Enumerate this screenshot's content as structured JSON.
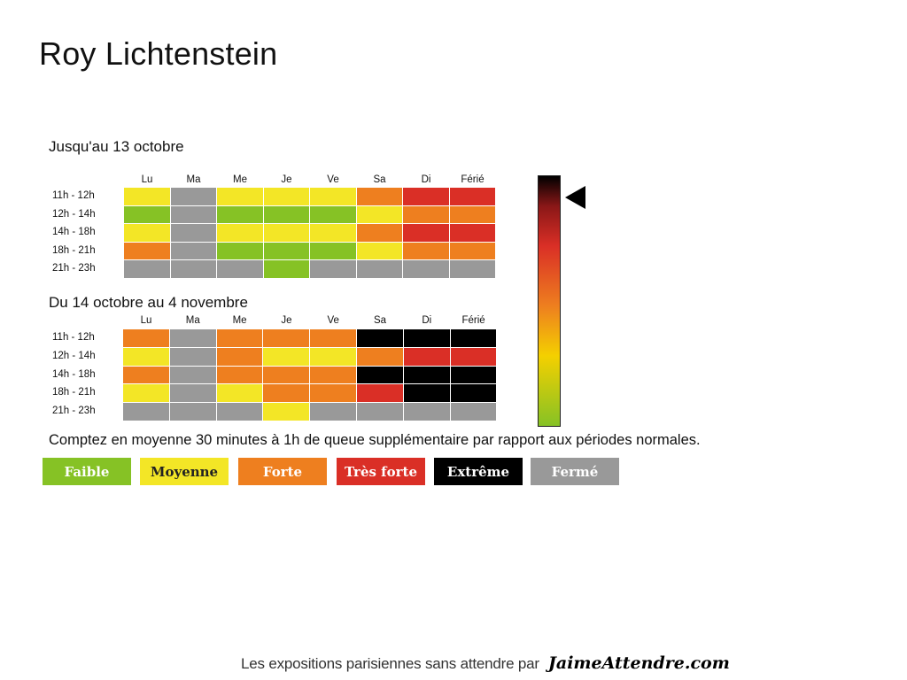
{
  "title": "Roy Lichtenstein",
  "chart_data": {
    "type": "heatmap",
    "days": [
      "Lu",
      "Ma",
      "Me",
      "Je",
      "Ve",
      "Sa",
      "Di",
      "Férié"
    ],
    "hours": [
      "11h - 12h",
      "12h - 14h",
      "14h - 18h",
      "18h - 21h",
      "21h - 23h"
    ],
    "levels": {
      "faible": "#86c225",
      "moyenne": "#f3e626",
      "forte": "#ee7f1f",
      "tres_forte": "#da2f26",
      "extreme": "#000000",
      "ferme": "#999999"
    },
    "periods": [
      {
        "title": "Jusqu'au 13 octobre",
        "grid": [
          [
            "moyenne",
            "ferme",
            "moyenne",
            "moyenne",
            "moyenne",
            "forte",
            "tres_forte",
            "tres_forte"
          ],
          [
            "faible",
            "ferme",
            "faible",
            "faible",
            "faible",
            "moyenne",
            "forte",
            "forte"
          ],
          [
            "moyenne",
            "ferme",
            "moyenne",
            "moyenne",
            "moyenne",
            "forte",
            "tres_forte",
            "tres_forte"
          ],
          [
            "forte",
            "ferme",
            "faible",
            "faible",
            "faible",
            "moyenne",
            "forte",
            "forte"
          ],
          [
            "ferme",
            "ferme",
            "ferme",
            "faible",
            "ferme",
            "ferme",
            "ferme",
            "ferme"
          ]
        ]
      },
      {
        "title": "Du 14 octobre au 4 novembre",
        "grid": [
          [
            "forte",
            "ferme",
            "forte",
            "forte",
            "forte",
            "extreme",
            "extreme",
            "extreme"
          ],
          [
            "moyenne",
            "ferme",
            "forte",
            "moyenne",
            "moyenne",
            "forte",
            "tres_forte",
            "tres_forte"
          ],
          [
            "forte",
            "ferme",
            "forte",
            "forte",
            "forte",
            "extreme",
            "extreme",
            "extreme"
          ],
          [
            "moyenne",
            "ferme",
            "moyenne",
            "forte",
            "forte",
            "tres_forte",
            "extreme",
            "extreme"
          ],
          [
            "ferme",
            "ferme",
            "ferme",
            "moyenne",
            "ferme",
            "ferme",
            "ferme",
            "ferme"
          ]
        ]
      }
    ]
  },
  "note": "Comptez en moyenne 30 minutes à 1h de queue supplémentaire par rapport aux périodes normales.",
  "legend": [
    {
      "key": "faible",
      "label": "Faible",
      "bg": "#86c225",
      "fg": "#ffffff"
    },
    {
      "key": "moyenne",
      "label": "Moyenne",
      "bg": "#f3e626",
      "fg": "#222222"
    },
    {
      "key": "forte",
      "label": "Forte",
      "bg": "#ee7f1f",
      "fg": "#ffffff"
    },
    {
      "key": "tres_forte",
      "label": "Très forte",
      "bg": "#da2f26",
      "fg": "#ffffff"
    },
    {
      "key": "extreme",
      "label": "Extrême",
      "bg": "#000000",
      "fg": "#ffffff"
    },
    {
      "key": "ferme",
      "label": "Fermé",
      "bg": "#999999",
      "fg": "#ffffff"
    }
  ],
  "scale_icon": "gradient-scale-bar",
  "marker_icon": "left-pointing-triangle",
  "footer": {
    "text": "Les expositions parisiennes sans attendre par",
    "logo": "JaimeAttendre.com"
  }
}
